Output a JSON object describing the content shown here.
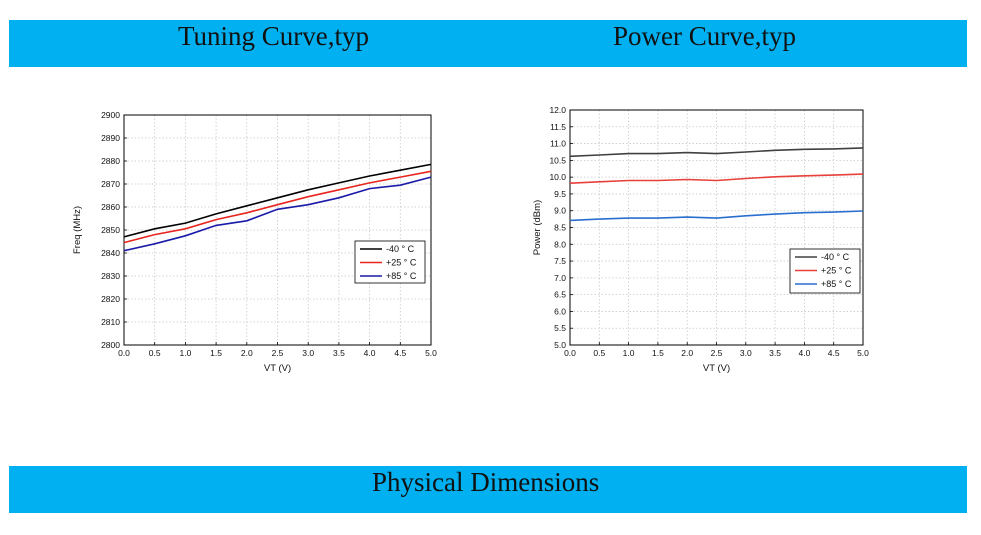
{
  "headers": {
    "tuning_title": "Tuning Curve,typ",
    "power_title": "Power Curve,typ",
    "dimensions_title": "Physical Dimensions"
  },
  "chart_data": [
    {
      "type": "line",
      "xlabel": "VT (V)",
      "ylabel": "Freq (MHz)",
      "xlim": [
        0,
        5
      ],
      "ylim": [
        2800,
        2900
      ],
      "x_ticks": [
        0.0,
        0.5,
        1.0,
        1.5,
        2.0,
        2.5,
        3.0,
        3.5,
        4.0,
        4.5,
        5.0
      ],
      "x_tick_labels": [
        "0.0",
        "0.5",
        "1.0",
        "1.5",
        "2.0",
        "2.5",
        "3.0",
        "3.5",
        "4.0",
        "4.5",
        "5.0"
      ],
      "y_ticks": [
        2800,
        2810,
        2820,
        2830,
        2840,
        2850,
        2860,
        2870,
        2880,
        2890,
        2900
      ],
      "y_tick_labels": [
        "2800",
        "2810",
        "2820",
        "2830",
        "2840",
        "2850",
        "2860",
        "2870",
        "2880",
        "2890",
        "2900"
      ],
      "grid": true,
      "legend_position": "right-middle",
      "x": [
        0,
        0.5,
        1.0,
        1.5,
        2.0,
        2.5,
        3.0,
        3.5,
        4.0,
        4.5,
        5.0
      ],
      "series": [
        {
          "name": "-40 ° C",
          "color": "#000000",
          "values": [
            2847,
            2850.5,
            2853,
            2857,
            2860.5,
            2864,
            2867.5,
            2870.5,
            2873.5,
            2876,
            2878.5
          ]
        },
        {
          "name": "+25 ° C",
          "color": "#e8251f",
          "values": [
            2844.5,
            2848,
            2850.5,
            2854.5,
            2857.5,
            2861,
            2864.5,
            2867.5,
            2870.5,
            2873,
            2875.5
          ]
        },
        {
          "name": "+85 ° C",
          "color": "#1a1aa8",
          "values": [
            2841,
            2844,
            2847.5,
            2852,
            2854,
            2859,
            2861,
            2864,
            2868,
            2869.5,
            2873
          ]
        }
      ]
    },
    {
      "type": "line",
      "xlabel": "VT (V)",
      "ylabel": "Power (dBm)",
      "xlim": [
        0,
        5
      ],
      "ylim": [
        5,
        12
      ],
      "x_ticks": [
        0.0,
        0.5,
        1.0,
        1.5,
        2.0,
        2.5,
        3.0,
        3.5,
        4.0,
        4.5,
        5.0
      ],
      "x_tick_labels": [
        "0.0",
        "0.5",
        "1.0",
        "1.5",
        "2.0",
        "2.5",
        "3.0",
        "3.5",
        "4.0",
        "4.5",
        "5.0"
      ],
      "y_ticks": [
        5.0,
        5.5,
        6.0,
        6.5,
        7.0,
        7.5,
        8.0,
        8.5,
        9.0,
        9.5,
        10.0,
        10.5,
        11.0,
        11.5,
        12.0
      ],
      "y_tick_labels": [
        "5.0",
        "5.5",
        "6.0",
        "6.5",
        "7.0",
        "7.5",
        "8.0",
        "8.5",
        "9.0",
        "9.5",
        "10.0",
        "10.5",
        "11.0",
        "11.5",
        "12.0"
      ],
      "grid": true,
      "legend_position": "right-middle",
      "x": [
        0,
        0.5,
        1.0,
        1.5,
        2.0,
        2.5,
        3.0,
        3.5,
        4.0,
        4.5,
        5.0
      ],
      "series": [
        {
          "name": "-40 ° C",
          "color": "#404040",
          "values": [
            10.62,
            10.66,
            10.7,
            10.7,
            10.73,
            10.7,
            10.75,
            10.8,
            10.83,
            10.84,
            10.87
          ]
        },
        {
          "name": "+25 ° C",
          "color": "#e8403a",
          "values": [
            9.82,
            9.86,
            9.9,
            9.9,
            9.93,
            9.9,
            9.96,
            10.01,
            10.04,
            10.06,
            10.09
          ]
        },
        {
          "name": "+85 ° C",
          "color": "#2a6fcf",
          "values": [
            8.71,
            8.75,
            8.78,
            8.78,
            8.81,
            8.78,
            8.85,
            8.9,
            8.94,
            8.96,
            8.99
          ]
        }
      ]
    }
  ]
}
